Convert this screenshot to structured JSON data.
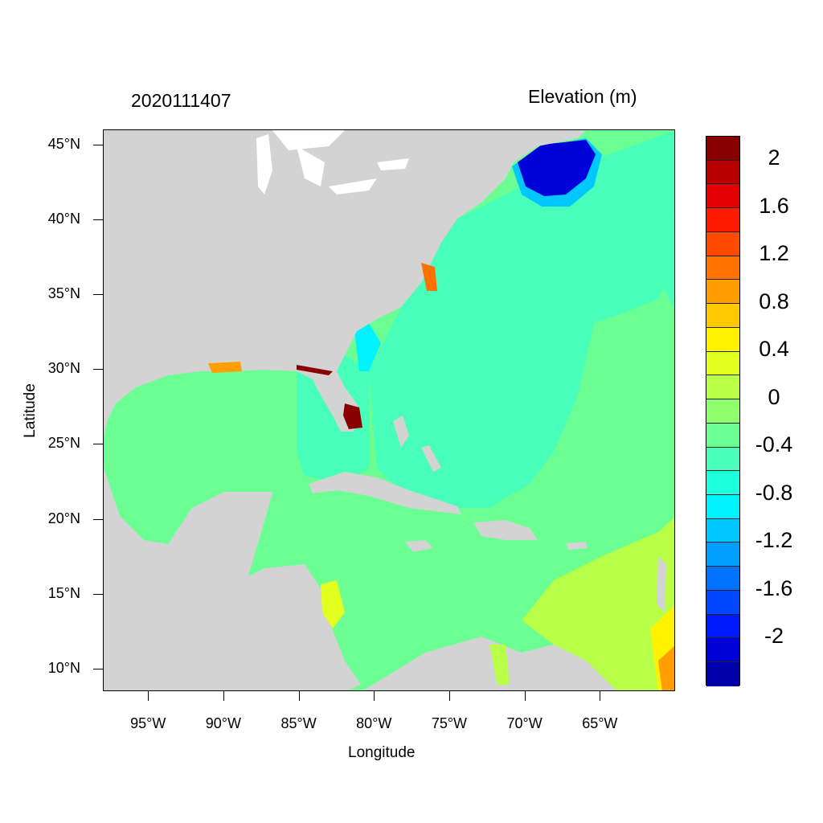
{
  "header": {
    "timestamp": "2020111407",
    "variable_label": "Elevation (m)"
  },
  "axes": {
    "xlabel": "Longitude",
    "ylabel": "Latitude",
    "x_ticks": [
      "95°W",
      "90°W",
      "85°W",
      "80°W",
      "75°W",
      "70°W",
      "65°W"
    ],
    "y_ticks": [
      "45°N",
      "40°N",
      "35°N",
      "30°N",
      "25°N",
      "20°N",
      "15°N",
      "10°N"
    ],
    "lon_range": [
      -98,
      -60
    ],
    "lat_range": [
      8.5,
      46
    ]
  },
  "colorbar": {
    "labels": [
      "2",
      "1.6",
      "1.2",
      "0.8",
      "0.4",
      "0",
      "-0.4",
      "-0.8",
      "-1.2",
      "-1.6",
      "-2"
    ],
    "colors": [
      "#8a0000",
      "#b80000",
      "#e30000",
      "#ff1a00",
      "#ff4a00",
      "#ff7200",
      "#ff9e00",
      "#ffc800",
      "#fff200",
      "#e2ff1e",
      "#b8ff47",
      "#90ff6e",
      "#6bff93",
      "#47ffb8",
      "#1effde",
      "#00f2ff",
      "#00c8ff",
      "#009eff",
      "#0072ff",
      "#0047ff",
      "#001aff",
      "#0000d8",
      "#0000a8"
    ]
  },
  "map": {
    "land_color": "#d3d3d3",
    "water_color": "#ffffff"
  }
}
